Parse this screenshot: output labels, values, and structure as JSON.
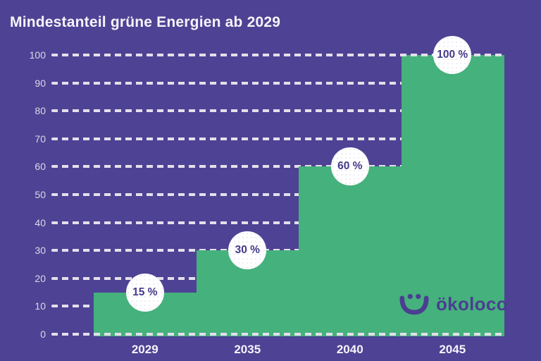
{
  "title": "Mindestanteil grüne Energien ab 2029",
  "chart_data": {
    "type": "bar",
    "title": "Mindestanteil grüne Energien ab 2029",
    "categories": [
      "2029",
      "2035",
      "2040",
      "2045"
    ],
    "values": [
      15,
      30,
      60,
      100
    ],
    "data_labels": [
      "15 %",
      "30 %",
      "60 %",
      "100 %"
    ],
    "xlabel": "",
    "ylabel": "",
    "ylim": [
      0,
      100
    ],
    "y_ticks": [
      0,
      10,
      20,
      30,
      40,
      50,
      60,
      70,
      80,
      90,
      100
    ],
    "grid": "horizontal-dashed",
    "legend": "none",
    "bar_style": "contiguous-steps"
  },
  "colors": {
    "background": "#4e4294",
    "bar": "#45b17c",
    "gridline": "#e4dfeb",
    "title_text": "#f6f3f9",
    "tick_text": "#ddd8e8",
    "xtick_text": "#f6f3f9",
    "badge_bg": "#ffffff",
    "badge_dot": "#efeaf4",
    "badge_text": "#443a8a",
    "logo": "#4b3e92"
  },
  "logo": {
    "icon": "smiley-icon",
    "text": "ökoloco"
  }
}
